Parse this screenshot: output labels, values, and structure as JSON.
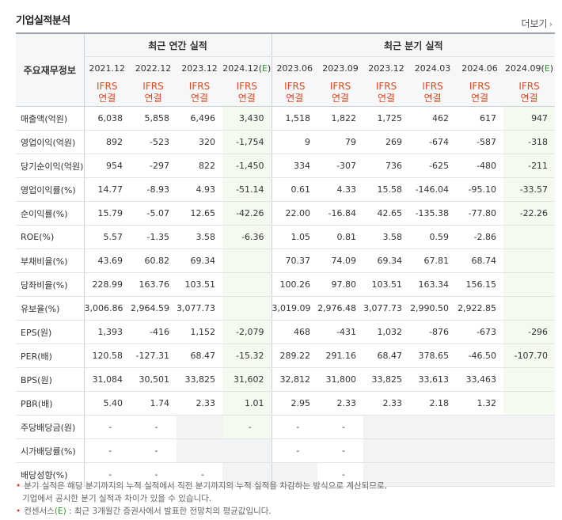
{
  "title": "기업실적분석",
  "more_label": "더보기",
  "table": {
    "row_header_label": "주요재무정보",
    "group_annual": "최근 연간 실적",
    "group_quarter": "최근 분기 실적",
    "periods": [
      "2021.12",
      "2022.12",
      "2023.12",
      "2024.12(E)",
      "2023.06",
      "2023.09",
      "2023.12",
      "2024.03",
      "2024.06",
      "2024.09(E)"
    ],
    "basis_top": "IFRS",
    "basis_bottom": "연결",
    "rows": [
      {
        "label": "매출액(억원)",
        "values": [
          "6,038",
          "5,858",
          "6,496",
          "3,430",
          "1,518",
          "1,822",
          "1,725",
          "462",
          "617",
          "947"
        ]
      },
      {
        "label": "영업이익(억원)",
        "values": [
          "892",
          "-523",
          "320",
          "-1,754",
          "9",
          "79",
          "269",
          "-674",
          "-587",
          "-318"
        ]
      },
      {
        "label": "당기순이익(억원)",
        "values": [
          "954",
          "-297",
          "822",
          "-1,450",
          "334",
          "-307",
          "736",
          "-625",
          "-480",
          "-211"
        ]
      },
      {
        "label": "영업이익률(%)",
        "values": [
          "14.77",
          "-8.93",
          "4.93",
          "-51.14",
          "0.61",
          "4.33",
          "15.58",
          "-146.04",
          "-95.10",
          "-33.57"
        ]
      },
      {
        "label": "순이익률(%)",
        "values": [
          "15.79",
          "-5.07",
          "12.65",
          "-42.26",
          "22.00",
          "-16.84",
          "42.65",
          "-135.38",
          "-77.80",
          "-22.26"
        ]
      },
      {
        "label": "ROE(%)",
        "values": [
          "5.57",
          "-1.35",
          "3.58",
          "-6.36",
          "1.05",
          "0.81",
          "3.58",
          "0.59",
          "-2.86",
          ""
        ]
      },
      {
        "label": "부채비율(%)",
        "values": [
          "43.69",
          "60.82",
          "69.34",
          "",
          "70.37",
          "74.09",
          "69.34",
          "67.81",
          "68.74",
          ""
        ]
      },
      {
        "label": "당좌비율(%)",
        "values": [
          "228.99",
          "163.76",
          "103.51",
          "",
          "100.26",
          "97.80",
          "103.51",
          "163.34",
          "156.15",
          ""
        ]
      },
      {
        "label": "유보율(%)",
        "values": [
          "3,006.86",
          "2,964.59",
          "3,077.73",
          "",
          "3,019.09",
          "2,976.48",
          "3,077.73",
          "2,990.50",
          "2,922.85",
          ""
        ]
      },
      {
        "label": "EPS(원)",
        "values": [
          "1,393",
          "-416",
          "1,152",
          "-2,079",
          "468",
          "-431",
          "1,032",
          "-876",
          "-673",
          "-296"
        ]
      },
      {
        "label": "PER(배)",
        "values": [
          "120.58",
          "-127.31",
          "68.47",
          "-15.32",
          "289.22",
          "291.16",
          "68.47",
          "378.65",
          "-46.50",
          "-107.70"
        ]
      },
      {
        "label": "BPS(원)",
        "values": [
          "31,084",
          "30,501",
          "33,825",
          "31,602",
          "32,812",
          "31,800",
          "33,825",
          "33,613",
          "33,463",
          ""
        ]
      },
      {
        "label": "PBR(배)",
        "values": [
          "5.40",
          "1.74",
          "2.33",
          "1.01",
          "2.95",
          "2.33",
          "2.33",
          "2.18",
          "1.32",
          ""
        ]
      },
      {
        "label": "주당배당금(원)",
        "values": [
          "-",
          "-",
          "",
          "-",
          "-",
          "-",
          "",
          "",
          "",
          ""
        ]
      },
      {
        "label": "시가배당률(%)",
        "values": [
          "-",
          "-",
          "",
          "",
          "-",
          "-",
          "",
          "",
          "",
          ""
        ]
      },
      {
        "label": "배당성향(%)",
        "values": [
          "-",
          "-",
          "-",
          "",
          "",
          "-",
          "",
          "",
          "",
          ""
        ]
      }
    ]
  },
  "notes": {
    "line1": "분기 실적은 해당 분기까지의 누적 실적에서 직전 분기까지의 누적 실적을 차감하는 방식으로 계산되므로,",
    "line2": "기업에서 공시한 분기 실적과 차이가 있을 수 있습니다.",
    "line3_pre": "컨센서스",
    "line3_e": "(E)",
    "line3_post": " : 최근 3개월간 증권사에서 발표한 전망치의 평균값입니다."
  }
}
